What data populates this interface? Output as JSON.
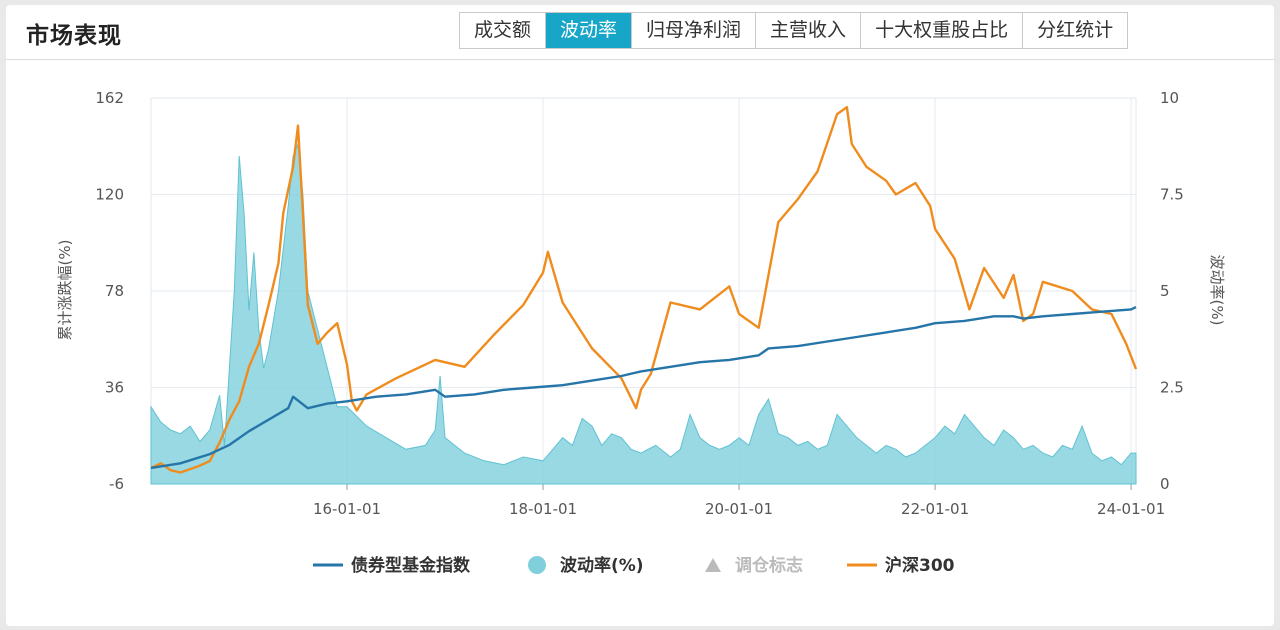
{
  "header": {
    "title": "市场表现",
    "tabs": [
      {
        "label": "成交额",
        "active": false
      },
      {
        "label": "波动率",
        "active": true
      },
      {
        "label": "归母净利润",
        "active": false
      },
      {
        "label": "主营收入",
        "active": false
      },
      {
        "label": "十大权重股占比",
        "active": false
      },
      {
        "label": "分红统计",
        "active": false
      }
    ]
  },
  "colors": {
    "bond_index": "#2675a8",
    "volatility": "#7fd0dc",
    "rebalance": "#bbbbbb",
    "csi300": "#f08c1e",
    "active_tab": "#18a6c8"
  },
  "chart_data": {
    "type": "line",
    "ylabel": "累计涨跌幅(%)",
    "y2label": "波动率(%)",
    "ylim": [
      -6,
      162
    ],
    "yticks": [
      "162",
      "120",
      "78",
      "36",
      "-6"
    ],
    "y2lim": [
      0,
      10
    ],
    "y2ticks": [
      "10",
      "7.5",
      "5",
      "2.5",
      "0"
    ],
    "xlim": [
      2014.0,
      2024.05
    ],
    "xticks": [
      {
        "value": 2016.0,
        "label": "16-01-01"
      },
      {
        "value": 2018.0,
        "label": "18-01-01"
      },
      {
        "value": 2020.0,
        "label": "20-01-01"
      },
      {
        "value": 2022.0,
        "label": "22-01-01"
      },
      {
        "value": 2024.0,
        "label": "24-01-01"
      }
    ],
    "grid": true,
    "legend_position": "bottom",
    "legend": [
      {
        "name": "债券型基金指数",
        "marker": "line",
        "color": "#2675a8"
      },
      {
        "name": "波动率(%)",
        "marker": "circle",
        "color": "#7fd0dc"
      },
      {
        "name": "调仓标志",
        "marker": "triangle",
        "color": "#bbbbbb",
        "disabled": true
      },
      {
        "name": "沪深300",
        "marker": "line",
        "color": "#f08c1e"
      }
    ],
    "series": [
      {
        "name": "债券型基金指数",
        "axis": "left",
        "style": "line",
        "x": [
          2014.0,
          2014.3,
          2014.6,
          2014.8,
          2015.0,
          2015.2,
          2015.4,
          2015.45,
          2015.6,
          2015.8,
          2016.0,
          2016.3,
          2016.6,
          2016.9,
          2017.0,
          2017.3,
          2017.6,
          2017.9,
          2018.2,
          2018.5,
          2018.8,
          2019.0,
          2019.3,
          2019.6,
          2019.9,
          2020.2,
          2020.3,
          2020.6,
          2020.9,
          2021.2,
          2021.5,
          2021.8,
          2022.0,
          2022.3,
          2022.6,
          2022.8,
          2022.9,
          2023.1,
          2023.4,
          2023.7,
          2024.0,
          2024.05
        ],
        "y": [
          1,
          3,
          7,
          11,
          17,
          22,
          27,
          32,
          27,
          29,
          30,
          32,
          33,
          35,
          32,
          33,
          35,
          36,
          37,
          39,
          41,
          43,
          45,
          47,
          48,
          50,
          53,
          54,
          56,
          58,
          60,
          62,
          64,
          65,
          67,
          67,
          66,
          67,
          68,
          69,
          70,
          71
        ]
      },
      {
        "name": "沪深300",
        "axis": "left",
        "style": "line",
        "x": [
          2014.0,
          2014.1,
          2014.2,
          2014.3,
          2014.5,
          2014.6,
          2014.7,
          2014.8,
          2014.9,
          2015.0,
          2015.1,
          2015.2,
          2015.3,
          2015.35,
          2015.45,
          2015.5,
          2015.55,
          2015.6,
          2015.7,
          2015.8,
          2015.9,
          2016.0,
          2016.05,
          2016.1,
          2016.2,
          2016.5,
          2016.9,
          2017.2,
          2017.5,
          2017.8,
          2018.0,
          2018.05,
          2018.2,
          2018.5,
          2018.8,
          2018.95,
          2019.0,
          2019.1,
          2019.3,
          2019.6,
          2019.9,
          2020.0,
          2020.2,
          2020.4,
          2020.6,
          2020.8,
          2021.0,
          2021.1,
          2021.15,
          2021.3,
          2021.5,
          2021.6,
          2021.8,
          2021.95,
          2022.0,
          2022.2,
          2022.35,
          2022.5,
          2022.7,
          2022.8,
          2022.9,
          2023.0,
          2023.1,
          2023.4,
          2023.6,
          2023.8,
          2023.95,
          2024.05
        ],
        "y": [
          1,
          3,
          0,
          -1,
          2,
          4,
          12,
          22,
          30,
          45,
          55,
          72,
          90,
          112,
          132,
          150,
          112,
          72,
          55,
          60,
          64,
          46,
          30,
          26,
          33,
          40,
          48,
          45,
          59,
          72,
          86,
          95,
          73,
          53,
          40,
          27,
          35,
          42,
          73,
          70,
          80,
          68,
          62,
          108,
          118,
          130,
          155,
          158,
          142,
          132,
          126,
          120,
          125,
          115,
          105,
          92,
          70,
          88,
          75,
          85,
          65,
          68,
          82,
          78,
          70,
          68,
          55,
          44
        ]
      },
      {
        "name": "波动率(%)",
        "axis": "right",
        "style": "area",
        "x": [
          2014.0,
          2014.1,
          2014.2,
          2014.3,
          2014.4,
          2014.5,
          2014.6,
          2014.7,
          2014.75,
          2014.8,
          2014.85,
          2014.9,
          2014.95,
          2015.0,
          2015.05,
          2015.1,
          2015.15,
          2015.2,
          2015.3,
          2015.4,
          2015.45,
          2015.5,
          2015.55,
          2015.6,
          2015.7,
          2015.8,
          2015.9,
          2016.0,
          2016.2,
          2016.4,
          2016.6,
          2016.8,
          2016.9,
          2016.95,
          2017.0,
          2017.2,
          2017.4,
          2017.6,
          2017.8,
          2018.0,
          2018.1,
          2018.2,
          2018.3,
          2018.4,
          2018.5,
          2018.6,
          2018.7,
          2018.8,
          2018.9,
          2019.0,
          2019.15,
          2019.3,
          2019.4,
          2019.5,
          2019.6,
          2019.7,
          2019.8,
          2019.9,
          2020.0,
          2020.1,
          2020.2,
          2020.3,
          2020.4,
          2020.5,
          2020.6,
          2020.7,
          2020.8,
          2020.9,
          2021.0,
          2021.1,
          2021.2,
          2021.3,
          2021.4,
          2021.5,
          2021.6,
          2021.7,
          2021.8,
          2021.9,
          2022.0,
          2022.1,
          2022.2,
          2022.3,
          2022.4,
          2022.5,
          2022.6,
          2022.7,
          2022.8,
          2022.9,
          2023.0,
          2023.1,
          2023.2,
          2023.3,
          2023.4,
          2023.5,
          2023.6,
          2023.7,
          2023.8,
          2023.9,
          2024.0,
          2024.05
        ],
        "y": [
          2.0,
          1.6,
          1.4,
          1.3,
          1.5,
          1.1,
          1.4,
          2.3,
          1.0,
          3.0,
          5.0,
          8.5,
          7.0,
          4.5,
          6.0,
          4.0,
          3.0,
          3.5,
          5.0,
          7.2,
          8.5,
          8.8,
          7.5,
          5.0,
          4.0,
          3.0,
          2.0,
          2.0,
          1.5,
          1.2,
          0.9,
          1.0,
          1.4,
          2.8,
          1.2,
          0.8,
          0.6,
          0.5,
          0.7,
          0.6,
          0.9,
          1.2,
          1.0,
          1.7,
          1.5,
          1.0,
          1.3,
          1.2,
          0.9,
          0.8,
          1.0,
          0.7,
          0.9,
          1.8,
          1.2,
          1.0,
          0.9,
          1.0,
          1.2,
          1.0,
          1.8,
          2.2,
          1.3,
          1.2,
          1.0,
          1.1,
          0.9,
          1.0,
          1.8,
          1.5,
          1.2,
          1.0,
          0.8,
          1.0,
          0.9,
          0.7,
          0.8,
          1.0,
          1.2,
          1.5,
          1.3,
          1.8,
          1.5,
          1.2,
          1.0,
          1.4,
          1.2,
          0.9,
          1.0,
          0.8,
          0.7,
          1.0,
          0.9,
          1.5,
          0.8,
          0.6,
          0.7,
          0.5,
          0.8,
          0.8
        ]
      }
    ]
  }
}
